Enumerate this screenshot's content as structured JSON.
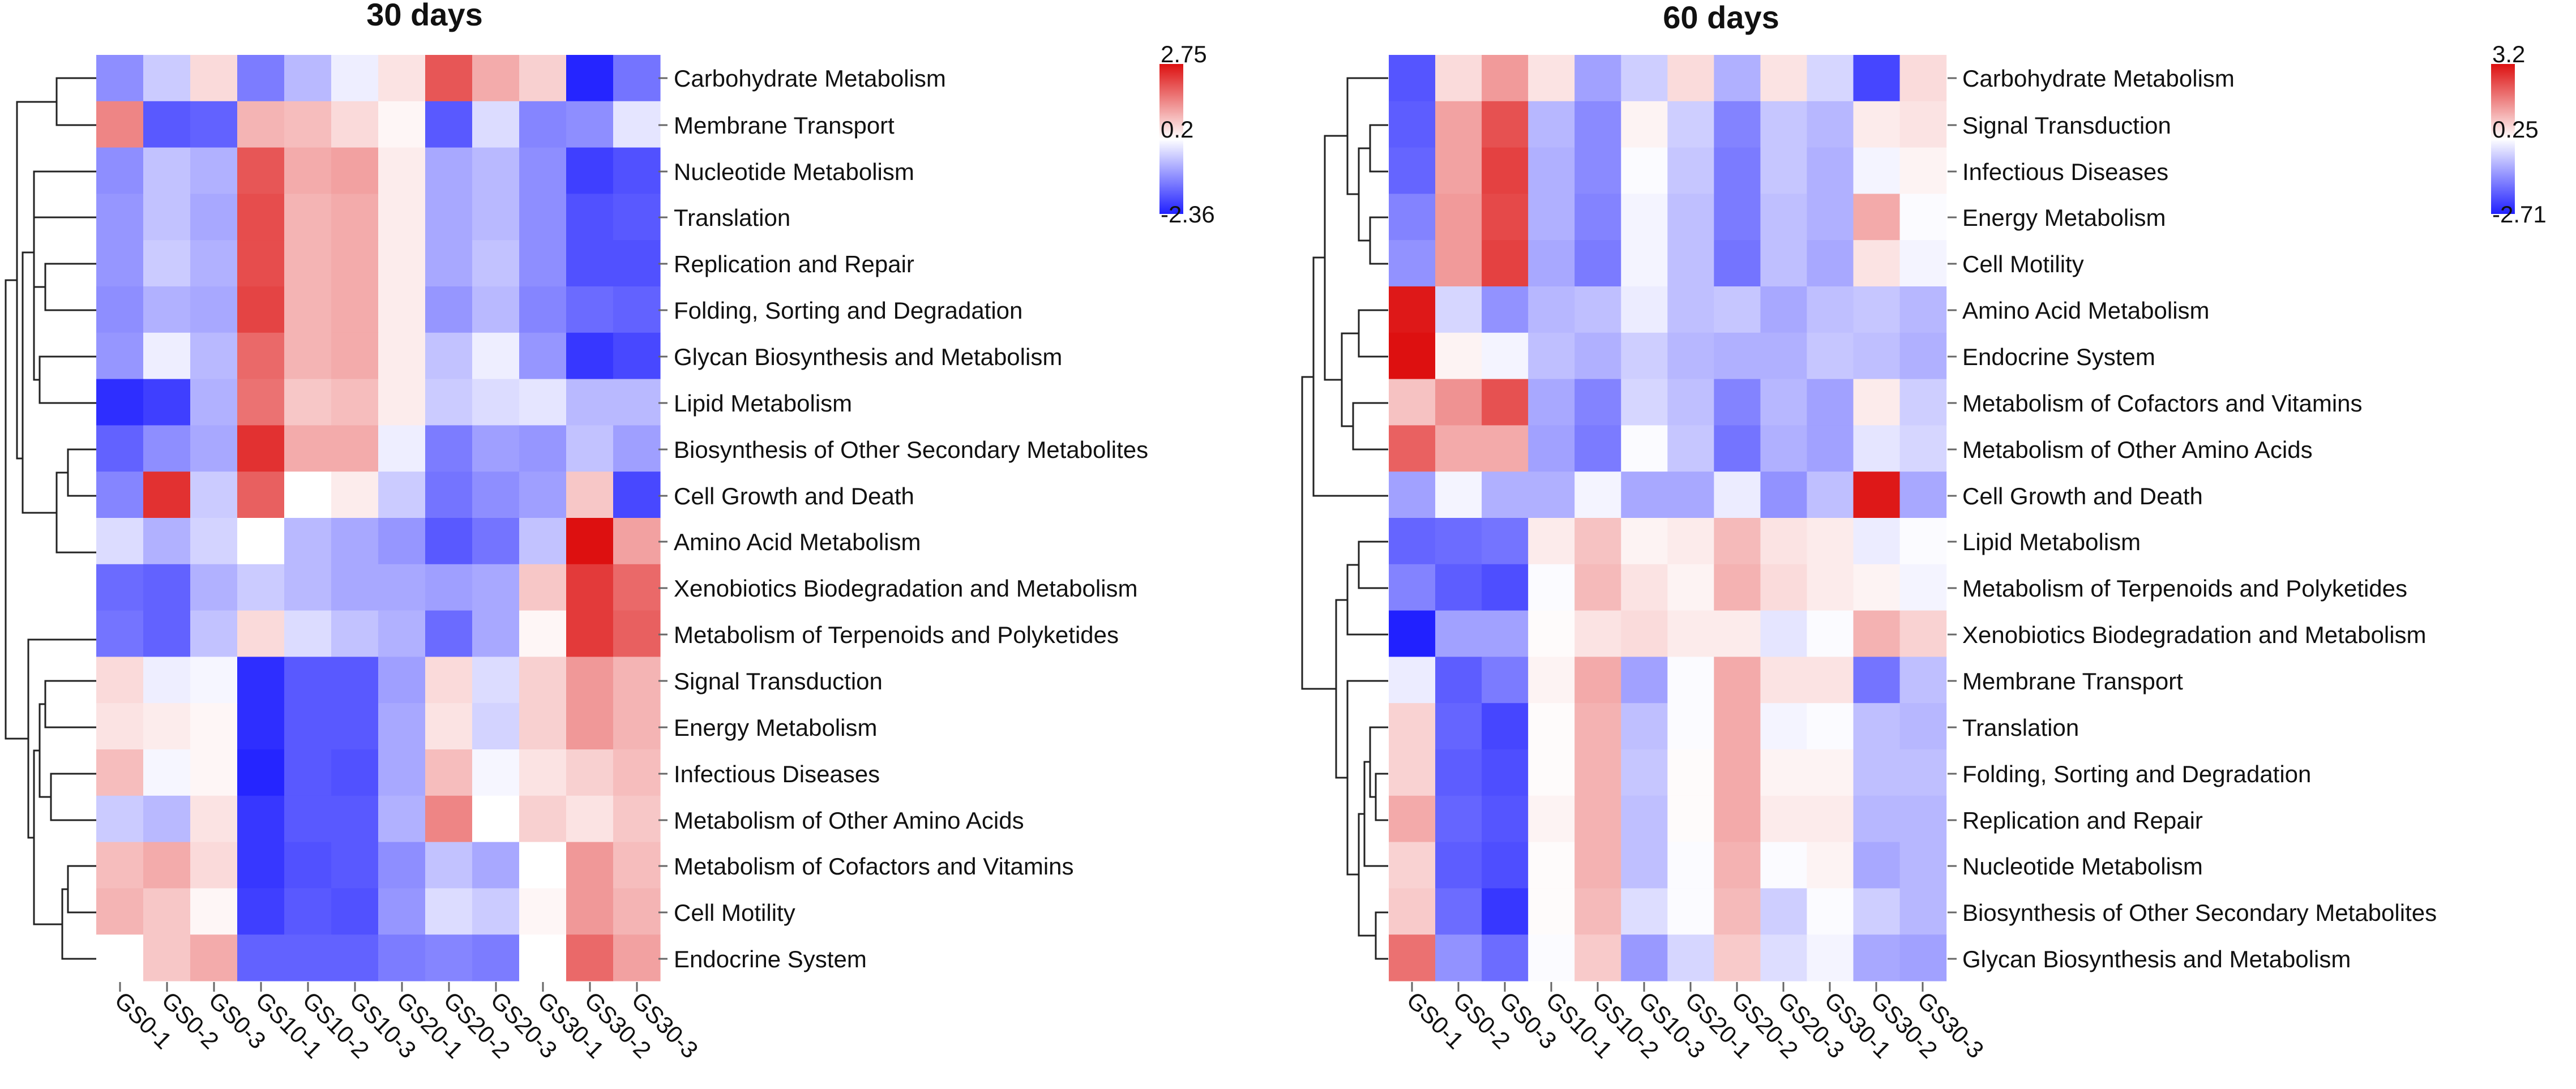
{
  "colors": {
    "low": "#2020ff",
    "mid": "#ffffff",
    "high": "#dd1010"
  },
  "chart_data": [
    {
      "type": "heatmap",
      "title": "30 days",
      "legend": {
        "max": "2.75",
        "mid": "0.2",
        "min": "-2.36",
        "vmax": 2.75,
        "vmid": 0.2,
        "vmin": -2.36
      },
      "columns": [
        "GS0-1",
        "GS0-2",
        "GS0-3",
        "GS10-1",
        "GS10-2",
        "GS10-3",
        "GS20-1",
        "GS20-2",
        "GS20-3",
        "GS30-1",
        "GS30-2",
        "GS30-3"
      ],
      "rows": [
        "Carbohydrate Metabolism",
        "Membrane Transport",
        "Nucleotide Metabolism",
        "Translation",
        "Replication and Repair",
        "Folding, Sorting and Degradation",
        "Glycan Biosynthesis and Metabolism",
        "Lipid Metabolism",
        "Biosynthesis of Other Secondary Metabolites",
        "Cell Growth and Death",
        "Amino Acid Metabolism",
        "Xenobiotics Biodegradation and Metabolism",
        "Metabolism of Terpenoids and Polyketides",
        "Signal Transduction",
        "Energy Metabolism",
        "Infectious Diseases",
        "Metabolism of Other Amino Acids",
        "Metabolism of Cofactors and Vitamins",
        "Cell Motility",
        "Endocrine System"
      ],
      "values": [
        [
          -1.1,
          -0.4,
          0.6,
          -1.3,
          -0.6,
          0.0,
          0.5,
          2.0,
          1.1,
          0.7,
          -2.3,
          -1.4
        ],
        [
          1.5,
          -1.7,
          -1.6,
          1.0,
          0.9,
          0.6,
          0.3,
          -1.7,
          -0.2,
          -1.2,
          -1.1,
          -0.1
        ],
        [
          -1.1,
          -0.5,
          -0.7,
          2.0,
          1.1,
          1.2,
          0.4,
          -0.8,
          -0.6,
          -1.1,
          -2.0,
          -1.8
        ],
        [
          -1.0,
          -0.5,
          -0.8,
          2.1,
          1.0,
          1.1,
          0.4,
          -0.8,
          -0.6,
          -1.1,
          -1.8,
          -1.7
        ],
        [
          -1.0,
          -0.4,
          -0.7,
          2.1,
          1.0,
          1.1,
          0.4,
          -0.8,
          -0.5,
          -1.1,
          -1.8,
          -1.8
        ],
        [
          -1.1,
          -0.7,
          -0.8,
          2.2,
          1.0,
          1.1,
          0.4,
          -1.0,
          -0.6,
          -1.2,
          -1.5,
          -1.6
        ],
        [
          -1.0,
          0.0,
          -0.6,
          1.8,
          1.0,
          1.1,
          0.4,
          -0.5,
          0.0,
          -1.0,
          -2.1,
          -1.9
        ],
        [
          -2.2,
          -2.0,
          -0.7,
          1.7,
          0.8,
          0.9,
          0.4,
          -0.4,
          -0.2,
          -0.1,
          -0.6,
          -0.6
        ],
        [
          -1.6,
          -1.1,
          -0.8,
          2.4,
          1.1,
          1.1,
          0.0,
          -1.3,
          -0.9,
          -1.0,
          -0.5,
          -0.9
        ],
        [
          -1.2,
          2.4,
          -0.4,
          1.9,
          0.2,
          0.4,
          -0.4,
          -1.4,
          -1.1,
          -0.9,
          0.8,
          -1.9
        ],
        [
          -0.2,
          -0.7,
          -0.3,
          0.2,
          -0.6,
          -0.8,
          -1.0,
          -1.7,
          -1.4,
          -0.5,
          2.75,
          1.2
        ],
        [
          -1.5,
          -1.6,
          -0.7,
          -0.4,
          -0.6,
          -0.8,
          -0.8,
          -0.9,
          -0.8,
          0.8,
          2.3,
          1.8
        ],
        [
          -1.4,
          -1.6,
          -0.5,
          0.6,
          -0.2,
          -0.5,
          -0.7,
          -1.5,
          -0.8,
          0.3,
          2.3,
          1.9
        ],
        [
          0.6,
          0.0,
          0.1,
          -2.2,
          -1.7,
          -1.7,
          -0.9,
          0.6,
          -0.2,
          0.7,
          1.3,
          1.0
        ],
        [
          0.5,
          0.4,
          0.3,
          -2.2,
          -1.7,
          -1.7,
          -0.8,
          0.5,
          -0.3,
          0.7,
          1.3,
          1.0
        ],
        [
          0.9,
          0.1,
          0.3,
          -2.3,
          -1.7,
          -1.8,
          -0.8,
          0.9,
          0.1,
          0.5,
          0.7,
          0.9
        ],
        [
          -0.4,
          -0.6,
          0.5,
          -2.1,
          -1.7,
          -1.7,
          -0.7,
          1.5,
          0.2,
          0.7,
          0.5,
          0.8
        ],
        [
          0.9,
          1.1,
          0.6,
          -2.1,
          -1.8,
          -1.7,
          -1.1,
          -0.5,
          -0.8,
          0.2,
          1.3,
          0.9
        ],
        [
          1.0,
          0.8,
          0.3,
          -2.0,
          -1.7,
          -1.8,
          -1.0,
          -0.2,
          -0.4,
          0.3,
          1.3,
          1.0
        ],
        [
          0.2,
          0.8,
          1.1,
          -1.6,
          -1.6,
          -1.6,
          -1.3,
          -1.2,
          -1.3,
          0.2,
          1.8,
          1.2
        ]
      ]
    },
    {
      "type": "heatmap",
      "title": "60 days",
      "legend": {
        "max": "3.2",
        "mid": "0.25",
        "min": "-2.71",
        "vmax": 3.2,
        "vmid": 0.25,
        "vmin": -2.71
      },
      "columns": [
        "GS0-1",
        "GS0-2",
        "GS0-3",
        "GS10-1",
        "GS10-2",
        "GS10-3",
        "GS20-1",
        "GS20-2",
        "GS20-3",
        "GS30-1",
        "GS30-2",
        "GS30-3"
      ],
      "rows": [
        "Carbohydrate Metabolism",
        "Signal Transduction",
        "Infectious Diseases",
        "Energy Metabolism",
        "Cell Motility",
        "Amino Acid Metabolism",
        "Endocrine System",
        "Metabolism of Cofactors and Vitamins",
        "Metabolism of Other Amino Acids",
        "Cell Growth and Death",
        "Lipid Metabolism",
        "Metabolism of Terpenoids and Polyketides",
        "Xenobiotics Biodegradation and Metabolism",
        "Membrane Transport",
        "Translation",
        "Folding, Sorting and Degradation",
        "Replication and Repair",
        "Nucleotide Metabolism",
        "Biosynthesis of Other Secondary Metabolites",
        "Glycan Biosynthesis and Metabolism"
      ],
      "values": [
        [
          -2.0,
          0.7,
          1.5,
          0.6,
          -1.0,
          -0.4,
          0.7,
          -0.8,
          0.6,
          -0.3,
          -2.2,
          0.7
        ],
        [
          -1.9,
          1.4,
          2.4,
          -0.7,
          -1.3,
          0.4,
          -0.4,
          -1.4,
          -0.5,
          -0.7,
          0.5,
          0.6
        ],
        [
          -1.8,
          1.4,
          2.6,
          -0.8,
          -1.3,
          0.2,
          -0.5,
          -1.5,
          -0.5,
          -0.8,
          0.1,
          0.4
        ],
        [
          -1.4,
          1.5,
          2.5,
          -0.8,
          -1.4,
          0.1,
          -0.6,
          -1.5,
          -0.6,
          -0.8,
          1.3,
          0.2
        ],
        [
          -1.2,
          1.5,
          2.6,
          -0.9,
          -1.5,
          0.1,
          -0.6,
          -1.6,
          -0.6,
          -0.9,
          0.6,
          0.1
        ],
        [
          3.1,
          -0.3,
          -1.2,
          -0.7,
          -0.6,
          0.0,
          -0.6,
          -0.5,
          -0.9,
          -0.6,
          -0.5,
          -0.7
        ],
        [
          3.2,
          0.4,
          0.1,
          -0.6,
          -0.8,
          -0.4,
          -0.7,
          -0.8,
          -0.8,
          -0.5,
          -0.6,
          -0.8
        ],
        [
          1.0,
          1.6,
          2.4,
          -0.9,
          -1.4,
          -0.3,
          -0.6,
          -1.4,
          -0.7,
          -1.0,
          0.5,
          -0.4
        ],
        [
          2.2,
          1.3,
          1.3,
          -1.0,
          -1.5,
          0.2,
          -0.5,
          -1.6,
          -0.8,
          -1.0,
          -0.1,
          -0.3
        ],
        [
          -1.0,
          0.1,
          -0.8,
          -0.8,
          0.1,
          -0.9,
          -0.9,
          0.0,
          -1.2,
          -0.6,
          3.1,
          -0.9
        ],
        [
          -1.8,
          -1.7,
          -1.6,
          0.5,
          1.0,
          0.4,
          0.5,
          1.1,
          0.6,
          0.5,
          0.0,
          0.2
        ],
        [
          -1.4,
          -1.9,
          -2.1,
          0.2,
          1.1,
          0.6,
          0.4,
          1.2,
          0.7,
          0.5,
          0.4,
          0.1
        ],
        [
          -2.7,
          -1.0,
          -1.0,
          0.3,
          0.6,
          0.7,
          0.5,
          0.5,
          -0.1,
          0.2,
          1.2,
          0.8
        ],
        [
          0.0,
          -1.9,
          -1.5,
          0.4,
          1.3,
          -1.0,
          0.2,
          1.3,
          0.6,
          0.6,
          -1.6,
          -0.6
        ],
        [
          0.8,
          -1.8,
          -2.2,
          0.3,
          1.2,
          -0.6,
          0.2,
          1.3,
          0.1,
          0.2,
          -0.6,
          -0.7
        ],
        [
          0.8,
          -1.9,
          -2.1,
          0.3,
          1.2,
          -0.5,
          0.3,
          1.3,
          0.4,
          0.4,
          -0.6,
          -0.6
        ],
        [
          1.3,
          -1.8,
          -2.0,
          0.4,
          1.2,
          -0.6,
          0.3,
          1.3,
          0.5,
          0.5,
          -0.7,
          -0.7
        ],
        [
          0.8,
          -1.9,
          -2.1,
          0.3,
          1.2,
          -0.6,
          0.2,
          1.2,
          0.2,
          0.4,
          -0.9,
          -0.7
        ],
        [
          0.9,
          -1.7,
          -2.4,
          0.3,
          1.1,
          -0.2,
          0.2,
          1.1,
          -0.4,
          0.2,
          -0.4,
          -0.7
        ],
        [
          2.0,
          -1.2,
          -1.7,
          0.2,
          0.9,
          -1.1,
          -0.3,
          0.9,
          -0.2,
          0.1,
          -0.9,
          -1.0
        ]
      ]
    }
  ]
}
